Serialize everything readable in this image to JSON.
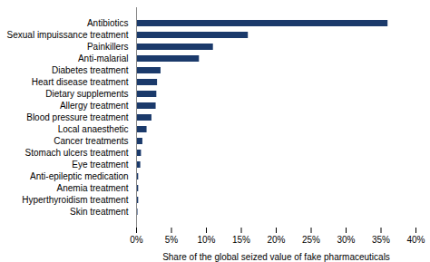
{
  "chart_data": {
    "type": "bar",
    "orientation": "horizontal",
    "xlabel": "Share of the global seized value of fake pharmaceuticals",
    "categories": [
      "Skin treatment",
      "Hyperthyroidism treatment",
      "Anemia treatment",
      "Anti-epileptic medication",
      "Eye treatment",
      "Stomach ulcers treatment",
      "Cancer treatments",
      "Local anaesthetic",
      "Blood pressure treatment",
      "Allergy treatment",
      "Dietary supplements",
      "Heart disease treatment",
      "Diabetes treatment",
      "Anti-malarial",
      "Painkillers",
      "Sexual impuissance treatment",
      "Antibiotics"
    ],
    "values": [
      0.2,
      0.3,
      0.3,
      0.3,
      0.6,
      0.7,
      0.9,
      1.5,
      2.2,
      2.8,
      2.9,
      3.0,
      3.5,
      9.0,
      11.0,
      16.0,
      36.0
    ],
    "color": "#1b3a6b",
    "xlim": [
      0,
      40
    ],
    "xticks": [
      {
        "value": 0,
        "label": "0%"
      },
      {
        "value": 5,
        "label": "5%"
      },
      {
        "value": 10,
        "label": "10%"
      },
      {
        "value": 15,
        "label": "15%"
      },
      {
        "value": 20,
        "label": "20%"
      },
      {
        "value": 25,
        "label": "25%"
      },
      {
        "value": 30,
        "label": "30%"
      },
      {
        "value": 35,
        "label": "35%"
      },
      {
        "value": 40,
        "label": "40%"
      }
    ],
    "grid": false
  }
}
